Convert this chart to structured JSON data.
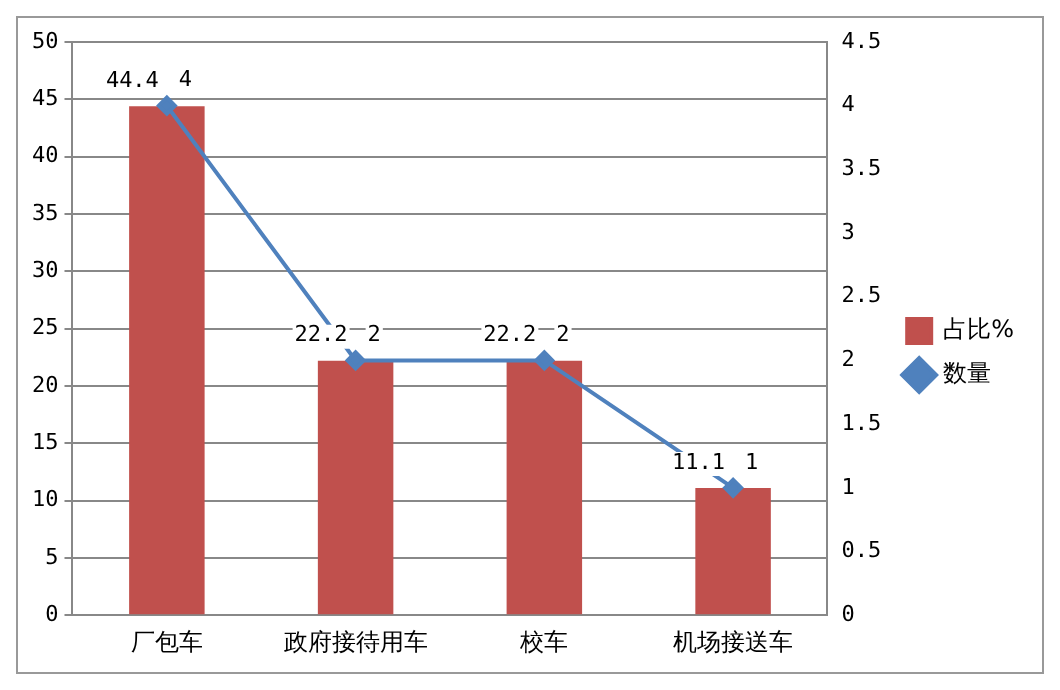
{
  "chart_data": {
    "type": "bar",
    "categories": [
      "厂包车",
      "政府接待用车",
      "校车",
      "机场接送车"
    ],
    "series": [
      {
        "name": "占比%",
        "color": "#c0504d",
        "values": [
          44.4,
          22.2,
          22.2,
          11.1
        ]
      },
      {
        "name": "数量",
        "type": "line",
        "axis": "y2",
        "color": "#4f81bd",
        "values": [
          4,
          2,
          2,
          1
        ]
      }
    ],
    "ylim": [
      0,
      50
    ],
    "yticks": [
      0,
      5,
      10,
      15,
      20,
      25,
      30,
      35,
      40,
      45,
      50
    ],
    "y2lim": [
      0,
      4.5
    ],
    "y2ticks": [
      0,
      0.5,
      1,
      1.5,
      2,
      2.5,
      3,
      3.5,
      4,
      4.5
    ],
    "grid": "y",
    "legend": "right",
    "marker": "diamond",
    "line_style": "solid",
    "data_labels": true
  }
}
